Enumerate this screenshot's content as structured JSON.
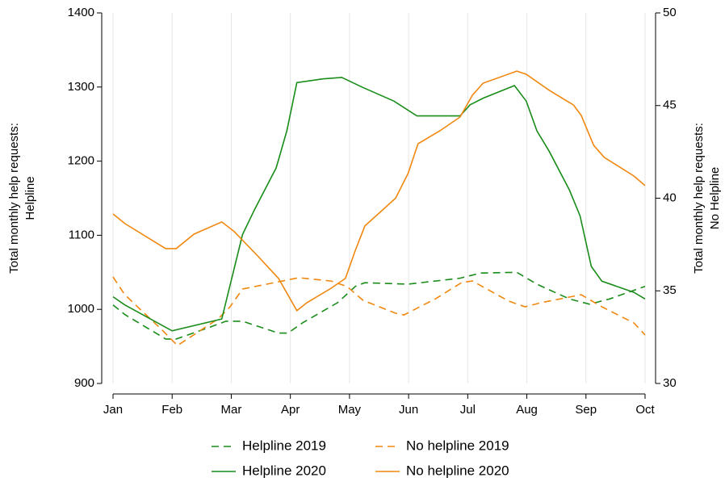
{
  "chart_data": {
    "type": "line",
    "ylabel": [
      "Total monthly help requests:",
      "Helpline"
    ],
    "y2label": [
      "Total monthly help requests:",
      "No Helpline"
    ],
    "xlim": [
      0,
      9
    ],
    "xticks": [
      {
        "value": 0,
        "label": "Jan"
      },
      {
        "value": 1,
        "label": "Feb"
      },
      {
        "value": 2,
        "label": "Mar"
      },
      {
        "value": 3,
        "label": "Apr"
      },
      {
        "value": 4,
        "label": "May"
      },
      {
        "value": 5,
        "label": "Jun"
      },
      {
        "value": 6,
        "label": "Jul"
      },
      {
        "value": 7,
        "label": "Aug"
      },
      {
        "value": 8,
        "label": "Sep"
      },
      {
        "value": 9,
        "label": "Oct"
      }
    ],
    "ylim": [
      900,
      1400
    ],
    "yticks": [
      900,
      1000,
      1100,
      1200,
      1300,
      1400
    ],
    "y2lim": [
      30,
      50
    ],
    "y2ticks": [
      30,
      35,
      40,
      45,
      50
    ],
    "grid": "x",
    "series": [
      {
        "name": "Helpline 2019",
        "color": "#1a8c1a",
        "style": "dashed",
        "x": [
          0,
          0.2,
          0.89,
          1.07,
          1.64,
          1.91,
          2.19,
          2.8,
          2.96,
          3.21,
          3.8,
          4.1,
          4.26,
          4.99,
          5.87,
          6.22,
          6.83,
          7.17,
          7.72,
          8.06,
          8.4,
          9
        ],
        "values": [
          1006,
          993,
          960,
          960,
          976,
          984,
          984,
          968,
          968,
          982,
          1009,
          1031,
          1036,
          1034,
          1042,
          1049,
          1050,
          1034,
          1014,
          1007,
          1014,
          1031
        ]
      },
      {
        "name": "No helpline 2019",
        "color": "#f0870f",
        "style": "dashed",
        "axis": "y2",
        "x": [
          0,
          0.2,
          0.82,
          1.09,
          1.78,
          1.98,
          2.19,
          2.6,
          3.14,
          3.69,
          3.96,
          4.23,
          4.78,
          4.92,
          5.46,
          5.9,
          6.08,
          6.69,
          6.97,
          7.24,
          7.92,
          8.27,
          8.81,
          9
        ],
        "values": [
          35.75,
          34.79,
          32.92,
          32.05,
          33.49,
          34.14,
          35.1,
          35.36,
          35.71,
          35.53,
          35.23,
          34.49,
          33.79,
          33.7,
          34.58,
          35.45,
          35.53,
          34.45,
          34.14,
          34.36,
          34.79,
          34.14,
          33.27,
          32.62
        ]
      },
      {
        "name": "Helpline 2020",
        "color": "#1a8c1a",
        "style": "solid",
        "x": [
          0,
          0.2,
          1.0,
          1.84,
          2.19,
          2.39,
          2.76,
          2.94,
          3.11,
          3.55,
          3.87,
          4.21,
          4.75,
          5.14,
          5.87,
          6.04,
          6.26,
          6.79,
          6.99,
          7.17,
          7.38,
          7.72,
          7.9,
          8.09,
          8.27,
          8.81,
          9
        ],
        "values": [
          1017,
          1006,
          971,
          987,
          1101,
          1134,
          1191,
          1241,
          1306,
          1311,
          1313,
          1300,
          1281,
          1261,
          1261,
          1276,
          1285,
          1302,
          1281,
          1241,
          1213,
          1161,
          1126,
          1058,
          1038,
          1023,
          1014
        ]
      },
      {
        "name": "No helpline 2020",
        "color": "#f0870f",
        "style": "solid",
        "axis": "y2",
        "x": [
          0,
          0.2,
          0.89,
          1.07,
          1.37,
          1.84,
          2.05,
          2.46,
          2.8,
          3.11,
          3.28,
          3.69,
          3.93,
          4.1,
          4.26,
          4.78,
          4.99,
          5.16,
          5.53,
          5.87,
          6.08,
          6.26,
          6.83,
          6.99,
          7.38,
          7.79,
          7.92,
          8.13,
          8.31,
          8.81,
          9
        ],
        "values": [
          39.15,
          38.63,
          37.28,
          37.28,
          38.06,
          38.72,
          38.2,
          36.84,
          35.67,
          33.93,
          34.36,
          35.14,
          35.67,
          37.19,
          38.5,
          40.0,
          41.33,
          42.94,
          43.64,
          44.38,
          45.56,
          46.21,
          46.86,
          46.69,
          45.82,
          45.03,
          44.47,
          42.86,
          42.2,
          41.2,
          40.68
        ]
      }
    ]
  }
}
